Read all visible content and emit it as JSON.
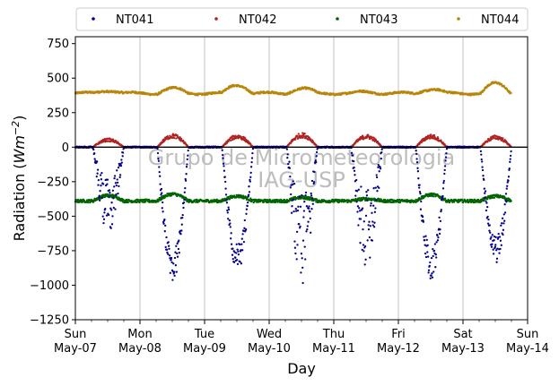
{
  "chart_data": {
    "type": "scatter",
    "title": "",
    "xlabel": "Day",
    "ylabel_main": "Radiation (",
    "ylabel_unit": "Wm",
    "ylabel_exp": "−2",
    "ylabel_close": ")",
    "watermark_line1": "Grupo de Micrometeorologia",
    "watermark_line2": "IAG-USP",
    "x_range_days": [
      0,
      7
    ],
    "ylim": [
      -1250,
      800
    ],
    "yticks": [
      {
        "value": 750,
        "label": "750"
      },
      {
        "value": 500,
        "label": "500"
      },
      {
        "value": 250,
        "label": "250"
      },
      {
        "value": 0,
        "label": "0"
      },
      {
        "value": -250,
        "label": "−250"
      },
      {
        "value": -500,
        "label": "−500"
      },
      {
        "value": -750,
        "label": "−750"
      },
      {
        "value": -1000,
        "label": "−1000"
      },
      {
        "value": -1250,
        "label": "−1250"
      }
    ],
    "xticks": [
      {
        "day": 0,
        "line1": "Sun",
        "line2": "May-07"
      },
      {
        "day": 1,
        "line1": "Mon",
        "line2": "May-08"
      },
      {
        "day": 2,
        "line1": "Tue",
        "line2": "May-09"
      },
      {
        "day": 3,
        "line1": "Wed",
        "line2": "May-10"
      },
      {
        "day": 4,
        "line1": "Thu",
        "line2": "May-11"
      },
      {
        "day": 5,
        "line1": "Fri",
        "line2": "May-12"
      },
      {
        "day": 6,
        "line1": "Sat",
        "line2": "May-13"
      },
      {
        "day": 7,
        "line1": "Sun",
        "line2": "May-14"
      }
    ],
    "grid": "vertical",
    "legend_position": "top",
    "series": [
      {
        "name": "NT041",
        "color": "#00008b",
        "baseline": 0,
        "daytime_amplitude": [
          -540,
          -890,
          -830,
          -860,
          -770,
          -870,
          -760
        ],
        "note_values_in_W_m2": true
      },
      {
        "name": "NT042",
        "color": "#b22222",
        "baseline": 0,
        "daytime_amplitude": [
          55,
          85,
          80,
          90,
          80,
          80,
          75
        ]
      },
      {
        "name": "NT043",
        "color": "#006400",
        "night_level": -390,
        "daytime_level": [
          -350,
          -340,
          -355,
          -365,
          -375,
          -345,
          -355
        ]
      },
      {
        "name": "NT044",
        "color": "#b8860b",
        "night_level": 390,
        "daytime_peak": [
          410,
          425,
          450,
          425,
          400,
          420,
          460
        ]
      }
    ]
  }
}
